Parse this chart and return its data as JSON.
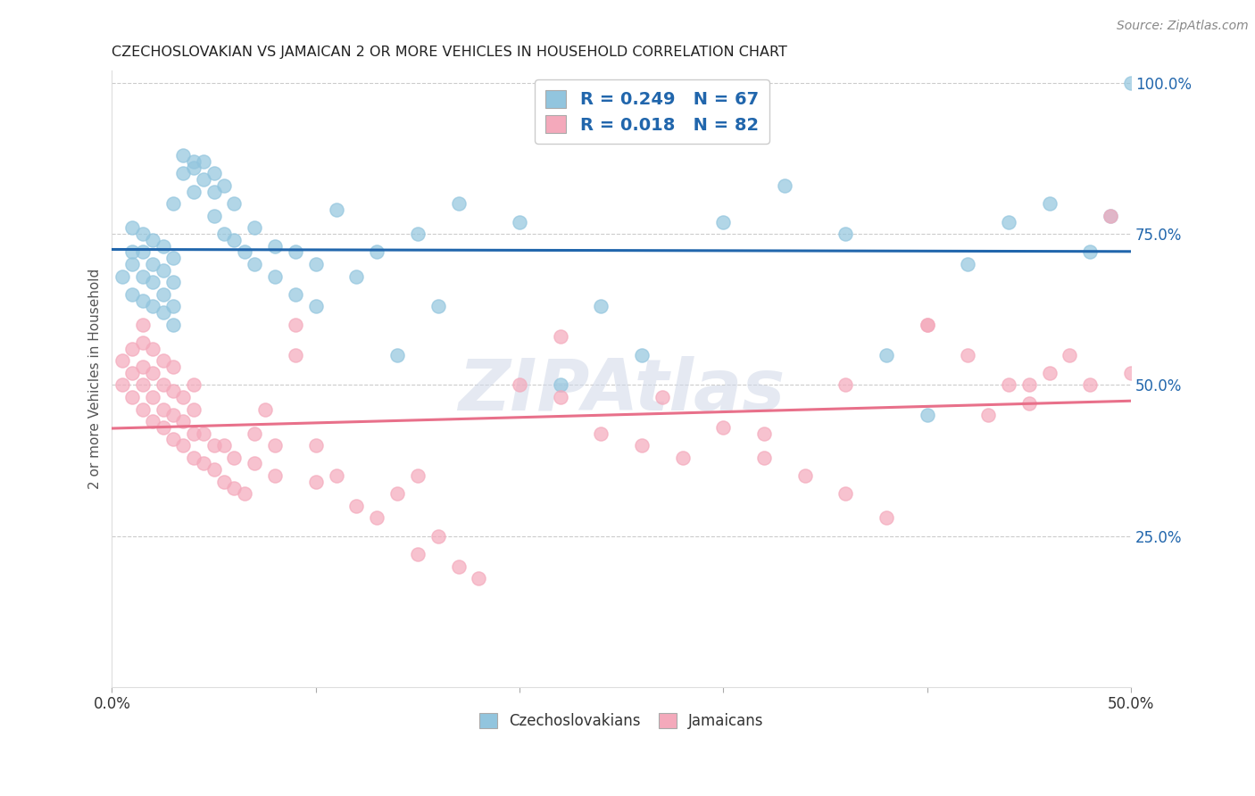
{
  "title": "CZECHOSLOVAKIAN VS JAMAICAN 2 OR MORE VEHICLES IN HOUSEHOLD CORRELATION CHART",
  "source": "Source: ZipAtlas.com",
  "ylabel": "2 or more Vehicles in Household",
  "x_min": 0.0,
  "x_max": 0.5,
  "y_min": 0.0,
  "y_max": 1.02,
  "x_ticks": [
    0.0,
    0.1,
    0.2,
    0.3,
    0.4,
    0.5
  ],
  "x_tick_labels": [
    "0.0%",
    "",
    "",
    "",
    "",
    "50.0%"
  ],
  "y_ticks": [
    0.25,
    0.5,
    0.75,
    1.0
  ],
  "y_tick_labels": [
    "25.0%",
    "50.0%",
    "75.0%",
    "100.0%"
  ],
  "czech_color": "#92c5de",
  "jamaican_color": "#f4a9bb",
  "czech_line_color": "#2166ac",
  "jamaican_line_color": "#e8708a",
  "czech_R": 0.249,
  "czech_N": 67,
  "jamaican_R": 0.018,
  "jamaican_N": 82,
  "watermark": "ZIPAtlas",
  "legend_labels": [
    "Czechoslovakians",
    "Jamaicans"
  ],
  "czech_scatter_x": [
    0.005,
    0.01,
    0.01,
    0.01,
    0.01,
    0.015,
    0.015,
    0.015,
    0.015,
    0.02,
    0.02,
    0.02,
    0.02,
    0.025,
    0.025,
    0.025,
    0.025,
    0.03,
    0.03,
    0.03,
    0.03,
    0.03,
    0.035,
    0.035,
    0.04,
    0.04,
    0.04,
    0.045,
    0.045,
    0.05,
    0.05,
    0.05,
    0.055,
    0.055,
    0.06,
    0.06,
    0.065,
    0.07,
    0.07,
    0.08,
    0.08,
    0.09,
    0.09,
    0.1,
    0.1,
    0.11,
    0.12,
    0.13,
    0.14,
    0.15,
    0.16,
    0.17,
    0.2,
    0.22,
    0.24,
    0.26,
    0.3,
    0.33,
    0.36,
    0.38,
    0.4,
    0.42,
    0.44,
    0.46,
    0.48,
    0.49,
    0.5
  ],
  "czech_scatter_y": [
    0.68,
    0.65,
    0.7,
    0.72,
    0.76,
    0.64,
    0.68,
    0.72,
    0.75,
    0.63,
    0.67,
    0.7,
    0.74,
    0.62,
    0.65,
    0.69,
    0.73,
    0.6,
    0.63,
    0.67,
    0.71,
    0.8,
    0.85,
    0.88,
    0.82,
    0.86,
    0.87,
    0.84,
    0.87,
    0.78,
    0.82,
    0.85,
    0.75,
    0.83,
    0.74,
    0.8,
    0.72,
    0.7,
    0.76,
    0.68,
    0.73,
    0.65,
    0.72,
    0.63,
    0.7,
    0.79,
    0.68,
    0.72,
    0.55,
    0.75,
    0.63,
    0.8,
    0.77,
    0.5,
    0.63,
    0.55,
    0.77,
    0.83,
    0.75,
    0.55,
    0.45,
    0.7,
    0.77,
    0.8,
    0.72,
    0.78,
    1.0
  ],
  "jamaican_scatter_x": [
    0.005,
    0.005,
    0.01,
    0.01,
    0.01,
    0.015,
    0.015,
    0.015,
    0.015,
    0.015,
    0.02,
    0.02,
    0.02,
    0.02,
    0.025,
    0.025,
    0.025,
    0.025,
    0.03,
    0.03,
    0.03,
    0.03,
    0.035,
    0.035,
    0.035,
    0.04,
    0.04,
    0.04,
    0.04,
    0.045,
    0.045,
    0.05,
    0.05,
    0.055,
    0.055,
    0.06,
    0.06,
    0.065,
    0.07,
    0.07,
    0.075,
    0.08,
    0.08,
    0.09,
    0.09,
    0.1,
    0.1,
    0.11,
    0.12,
    0.13,
    0.14,
    0.15,
    0.16,
    0.17,
    0.18,
    0.2,
    0.22,
    0.24,
    0.26,
    0.28,
    0.3,
    0.32,
    0.34,
    0.36,
    0.38,
    0.4,
    0.42,
    0.44,
    0.45,
    0.46,
    0.47,
    0.48,
    0.49,
    0.5,
    0.22,
    0.27,
    0.32,
    0.36,
    0.4,
    0.15,
    0.45,
    0.43
  ],
  "jamaican_scatter_y": [
    0.5,
    0.54,
    0.48,
    0.52,
    0.56,
    0.46,
    0.5,
    0.53,
    0.57,
    0.6,
    0.44,
    0.48,
    0.52,
    0.56,
    0.43,
    0.46,
    0.5,
    0.54,
    0.41,
    0.45,
    0.49,
    0.53,
    0.4,
    0.44,
    0.48,
    0.38,
    0.42,
    0.46,
    0.5,
    0.37,
    0.42,
    0.36,
    0.4,
    0.34,
    0.4,
    0.33,
    0.38,
    0.32,
    0.37,
    0.42,
    0.46,
    0.35,
    0.4,
    0.55,
    0.6,
    0.34,
    0.4,
    0.35,
    0.3,
    0.28,
    0.32,
    0.22,
    0.25,
    0.2,
    0.18,
    0.5,
    0.48,
    0.42,
    0.4,
    0.38,
    0.43,
    0.38,
    0.35,
    0.32,
    0.28,
    0.6,
    0.55,
    0.5,
    0.47,
    0.52,
    0.55,
    0.5,
    0.78,
    0.52,
    0.58,
    0.48,
    0.42,
    0.5,
    0.6,
    0.35,
    0.5,
    0.45
  ]
}
